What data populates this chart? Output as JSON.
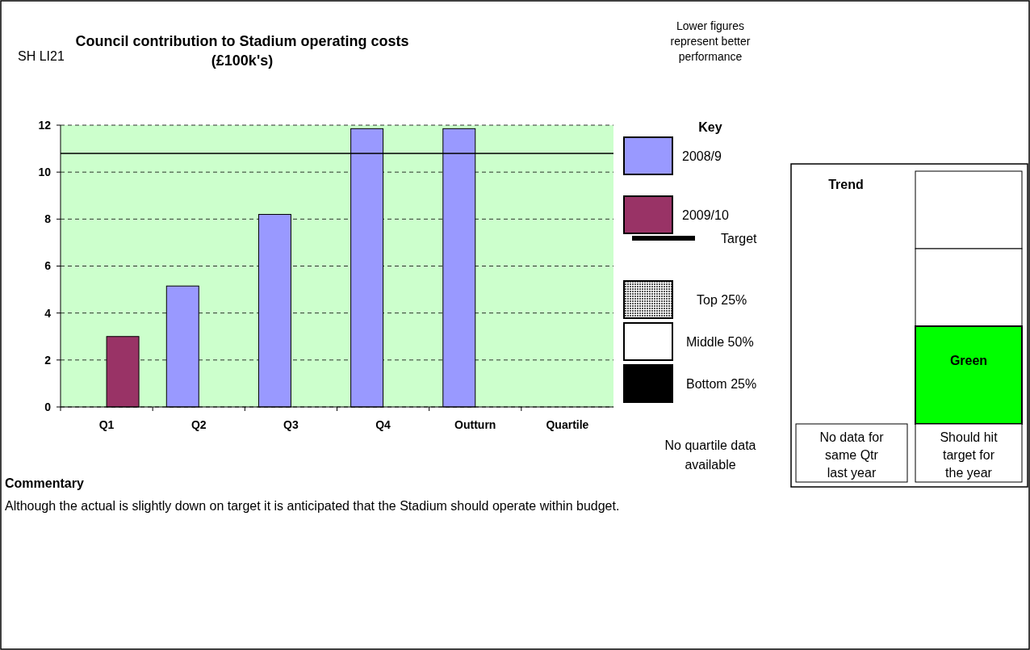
{
  "chart_data": {
    "type": "bar",
    "title": "Council contribution to Stadium operating costs (£100k's)",
    "categories": [
      "Q1",
      "Q2",
      "Q3",
      "Q4",
      "Outturn",
      "Quartile"
    ],
    "series": [
      {
        "name": "2008/9",
        "color": "#9999ff",
        "values": [
          null,
          5.15,
          8.2,
          11.85,
          11.85,
          null
        ]
      },
      {
        "name": "2009/10",
        "color": "#993366",
        "values": [
          3.0,
          null,
          null,
          null,
          null,
          null
        ]
      }
    ],
    "ylim": [
      0,
      12
    ],
    "yticks": [
      0,
      2,
      4,
      6,
      8,
      10,
      12
    ],
    "grid": "y",
    "legend": "right",
    "ref_lines": [
      {
        "axis": "y",
        "value": 10.8,
        "label": "Target",
        "color": "#000000"
      }
    ],
    "annotations": [
      "SH LI21",
      "Lower figures represent better performance",
      "Key",
      "No quartile data available",
      "Trend",
      "No data for same Qtr last year",
      "Green",
      "Should hit target for the year",
      "Commentary",
      "Although the actual is slightly down on target it is anticipated that the Stadium should operate within budget.",
      "Top 25%",
      "Middle 50%",
      "Bottom 25%"
    ]
  }
}
